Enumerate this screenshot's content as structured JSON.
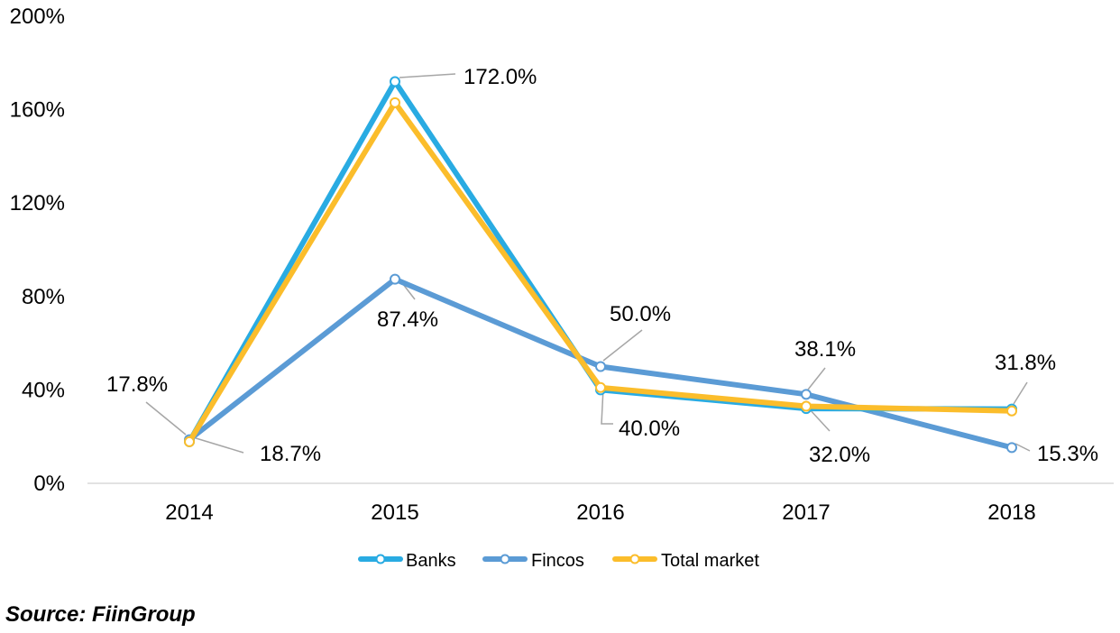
{
  "chart_data": {
    "type": "line",
    "title": "",
    "xlabel": "",
    "ylabel": "",
    "categories": [
      "2014",
      "2015",
      "2016",
      "2017",
      "2018"
    ],
    "ylim": [
      0,
      200
    ],
    "yticks": [
      0,
      40,
      80,
      120,
      160,
      200
    ],
    "ytick_labels": [
      "0%",
      "40%",
      "80%",
      "120%",
      "160%",
      "200%"
    ],
    "grid": false,
    "legend_position": "bottom",
    "series": [
      {
        "name": "Banks",
        "color": "#29ABE2",
        "values": [
          17.8,
          172.0,
          40.0,
          32.0,
          31.8
        ]
      },
      {
        "name": "Fincos",
        "color": "#5B9BD5",
        "values": [
          18.7,
          87.4,
          50.0,
          38.1,
          15.3
        ]
      },
      {
        "name": "Total market",
        "color": "#FBBD2B",
        "values": [
          17.8,
          163.0,
          41.0,
          33.0,
          31.0
        ]
      }
    ],
    "annotations": [
      {
        "text": "17.8%",
        "category": "2014",
        "value": 17.8
      },
      {
        "text": "18.7%",
        "category": "2014",
        "value": 18.7
      },
      {
        "text": "172.0%",
        "category": "2015",
        "value": 172.0
      },
      {
        "text": "87.4%",
        "category": "2015",
        "value": 87.4
      },
      {
        "text": "50.0%",
        "category": "2016",
        "value": 50.0
      },
      {
        "text": "40.0%",
        "category": "2016",
        "value": 40.0
      },
      {
        "text": "38.1%",
        "category": "2017",
        "value": 38.1
      },
      {
        "text": "32.0%",
        "category": "2017",
        "value": 32.0
      },
      {
        "text": "31.8%",
        "category": "2018",
        "value": 31.8
      },
      {
        "text": "15.3%",
        "category": "2018",
        "value": 15.3
      }
    ]
  },
  "source": "Source: FiinGroup"
}
